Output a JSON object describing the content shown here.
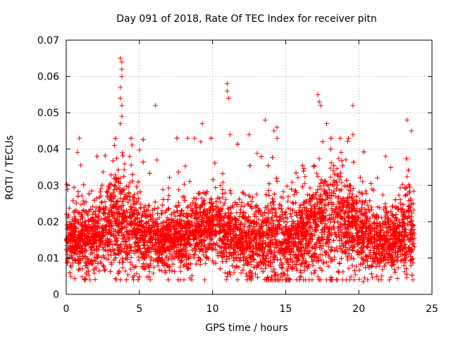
{
  "chart_data": {
    "type": "scatter",
    "title": "Day 091 of 2018, Rate Of TEC Index for receiver pitn",
    "xlabel": "GPS time / hours",
    "ylabel": "ROTI / TECUs",
    "xlim": [
      0,
      25
    ],
    "ylim": [
      0,
      0.07
    ],
    "xticks": [
      0,
      5,
      10,
      15,
      20,
      25
    ],
    "xtick_labels": [
      "0",
      "5",
      "10",
      "15",
      "20",
      "25"
    ],
    "yticks": [
      0,
      0.01,
      0.02,
      0.03,
      0.04,
      0.05,
      0.06,
      0.07
    ],
    "ytick_labels": [
      "0",
      "0.01",
      "0.02",
      "0.03",
      "0.04",
      "0.05",
      "0.06",
      "0.07"
    ],
    "grid": true,
    "marker": "+",
    "marker_color": "#ff0000",
    "series": [
      {
        "name": "ROTI",
        "color": "#ff0000",
        "x_range": [
          0,
          23.8
        ],
        "dense_points": 6500,
        "notable_points": [
          {
            "x": 3.7,
            "y": 0.065
          },
          {
            "x": 3.8,
            "y": 0.064
          },
          {
            "x": 3.8,
            "y": 0.062
          },
          {
            "x": 3.8,
            "y": 0.06
          },
          {
            "x": 3.7,
            "y": 0.057
          },
          {
            "x": 3.7,
            "y": 0.054
          },
          {
            "x": 3.8,
            "y": 0.052
          },
          {
            "x": 3.8,
            "y": 0.049
          },
          {
            "x": 3.7,
            "y": 0.047
          },
          {
            "x": 3.3,
            "y": 0.041
          },
          {
            "x": 0.9,
            "y": 0.043
          },
          {
            "x": 6.1,
            "y": 0.052
          },
          {
            "x": 9.3,
            "y": 0.047
          },
          {
            "x": 9.2,
            "y": 0.042
          },
          {
            "x": 8.3,
            "y": 0.043
          },
          {
            "x": 11.0,
            "y": 0.058
          },
          {
            "x": 11.0,
            "y": 0.056
          },
          {
            "x": 11.1,
            "y": 0.054
          },
          {
            "x": 11.2,
            "y": 0.044
          },
          {
            "x": 12.5,
            "y": 0.044
          },
          {
            "x": 13.6,
            "y": 0.048
          },
          {
            "x": 14.2,
            "y": 0.045
          },
          {
            "x": 14.4,
            "y": 0.046
          },
          {
            "x": 17.2,
            "y": 0.055
          },
          {
            "x": 17.3,
            "y": 0.053
          },
          {
            "x": 17.4,
            "y": 0.052
          },
          {
            "x": 17.8,
            "y": 0.047
          },
          {
            "x": 19.6,
            "y": 0.052
          },
          {
            "x": 19.6,
            "y": 0.044
          },
          {
            "x": 23.3,
            "y": 0.048
          },
          {
            "x": 23.6,
            "y": 0.045
          },
          {
            "x": 20.3,
            "y": 0.0035
          },
          {
            "x": 20.4,
            "y": 0.0045
          }
        ]
      }
    ]
  }
}
